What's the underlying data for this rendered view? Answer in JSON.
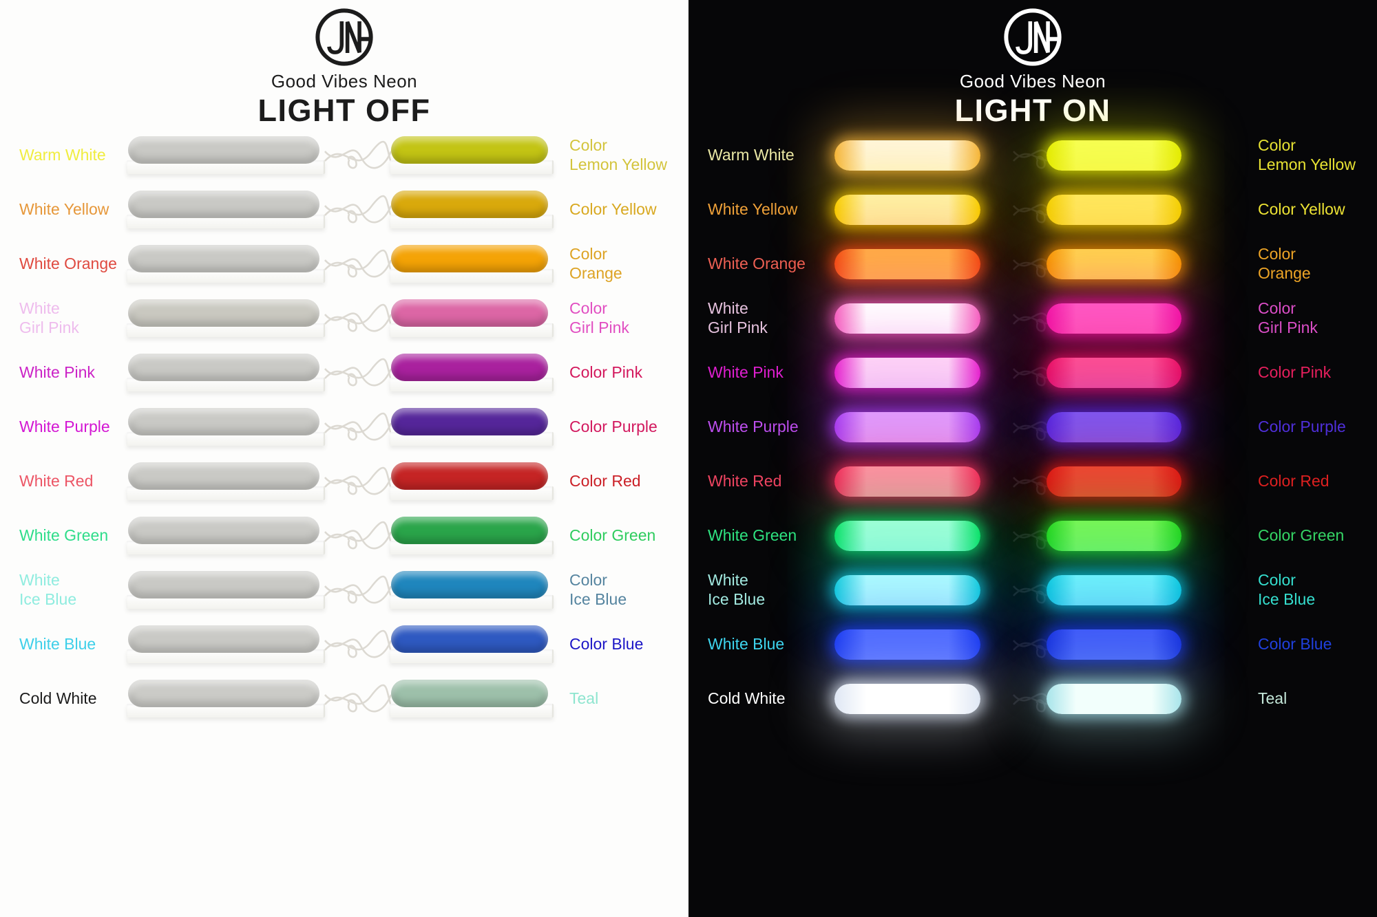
{
  "brand": {
    "name": "Good Vibes Neon",
    "monogram": "JN"
  },
  "panels": {
    "off": {
      "title": "LIGHT OFF",
      "background": "#fdfdfc",
      "text_color": "#1c1c1c"
    },
    "on": {
      "title": "LIGHT ON",
      "background": "#060608",
      "text_color": "#ffffff"
    }
  },
  "rows": [
    {
      "white_label": "Warm White",
      "color_label": "Color\nLemon Yellow",
      "off": {
        "white_label_color": "#f0ed40",
        "color_label_color": "#d3c43c",
        "white_tube": "#c9c9c5",
        "color_tube": "#c3c414"
      },
      "on": {
        "white_label_color": "#eae8a5",
        "color_label_color": "#e7e233",
        "white_tube": [
          "#f5b43a",
          "#fff6dc"
        ],
        "color_tube": [
          "#e3ec00",
          "#f6ff52"
        ]
      }
    },
    {
      "white_label": "White Yellow",
      "color_label": "Color Yellow",
      "off": {
        "white_label_color": "#e69739",
        "color_label_color": "#d8a81f",
        "white_tube": "#c9c9c5",
        "color_tube": "#d9a90c"
      },
      "on": {
        "white_label_color": "#efa139",
        "color_label_color": "#ede334",
        "white_tube": [
          "#f8cf00",
          "#fff3a6"
        ],
        "color_tube": [
          "#f3cf00",
          "#ffe95e"
        ]
      }
    },
    {
      "white_label": "White Orange",
      "color_label": "Color\nOrange",
      "off": {
        "white_label_color": "#df4a40",
        "color_label_color": "#dda324",
        "white_tube": "#c9c9c5",
        "color_tube": "#f4a306"
      },
      "on": {
        "white_label_color": "#ee6054",
        "color_label_color": "#eda426",
        "white_tube": [
          "#f24a12",
          "#ffab45"
        ],
        "color_tube": [
          "#f59300",
          "#ffd24e"
        ]
      }
    },
    {
      "white_label": "White\nGirl Pink",
      "color_label": "Color\nGirl Pink",
      "off": {
        "white_label_color": "#eebced",
        "color_label_color": "#e14ec1",
        "white_tube": "#c9c8c0",
        "color_tube": "#dc66a5"
      },
      "on": {
        "white_label_color": "#e6c2de",
        "color_label_color": "#dc4ec8",
        "white_tube": [
          "#f560be",
          "#ffffff"
        ],
        "color_tube": [
          "#f014a6",
          "#ff58c4"
        ]
      }
    },
    {
      "white_label": "White Pink",
      "color_label": "Color Pink",
      "off": {
        "white_label_color": "#cb22c6",
        "color_label_color": "#d3175c",
        "white_tube": "#c9c9c5",
        "color_tube": "#a9219e"
      },
      "on": {
        "white_label_color": "#df1fd0",
        "color_label_color": "#e61f5d",
        "white_tube": [
          "#e822cc",
          "#ffd4f6"
        ],
        "color_tube": [
          "#ea0e62",
          "#ff4e92"
        ]
      }
    },
    {
      "white_label": "White Purple",
      "color_label": "Color Purple",
      "off": {
        "white_label_color": "#d316d3",
        "color_label_color": "#d2185e",
        "white_tube": "#c9c9c5",
        "color_tube": "#55269a"
      },
      "on": {
        "white_label_color": "#bd4fee",
        "color_label_color": "#4f2fda",
        "white_tube": [
          "#a43cf2",
          "#e09cff"
        ],
        "color_tube": [
          "#5526e0",
          "#7e57f2"
        ]
      }
    },
    {
      "white_label": "White Red",
      "color_label": "Color Red",
      "off": {
        "white_label_color": "#ec5565",
        "color_label_color": "#cb2027",
        "white_tube": "#c9c9c5",
        "color_tube": "#c52424"
      },
      "on": {
        "white_label_color": "#ee4461",
        "color_label_color": "#dd2020",
        "white_tube": [
          "#f22858",
          "#ff8fa0"
        ],
        "color_tube": [
          "#de1414",
          "#ef4433"
        ]
      }
    },
    {
      "white_label": "White Green",
      "color_label": "Color Green",
      "off": {
        "white_label_color": "#2edd8a",
        "color_label_color": "#2ecc5e",
        "white_tube": "#c9c9c5",
        "color_tube": "#2aa54a"
      },
      "on": {
        "white_label_color": "#2fe381",
        "color_label_color": "#35d565",
        "white_tube": [
          "#0ce266",
          "#9effd6"
        ],
        "color_tube": [
          "#23d41d",
          "#77f556"
        ]
      }
    },
    {
      "white_label": "White\nIce Blue",
      "color_label": "Color\nIce Blue",
      "off": {
        "white_label_color": "#8fecdf",
        "color_label_color": "#55849f",
        "white_tube": "#c9c9c5",
        "color_tube": "#1f86bd"
      },
      "on": {
        "white_label_color": "#a2e9e0",
        "color_label_color": "#35dfcf",
        "white_tube": [
          "#14ccdd",
          "#aefcff"
        ],
        "color_tube": [
          "#0cc8de",
          "#6ef2fb"
        ]
      }
    },
    {
      "white_label": "White Blue",
      "color_label": "Color Blue",
      "off": {
        "white_label_color": "#3ecfe9",
        "color_label_color": "#1b15c6",
        "white_tube": "#c9c9c5",
        "color_tube": "#2e59c1"
      },
      "on": {
        "white_label_color": "#3ed5ee",
        "color_label_color": "#2040dd",
        "white_tube": [
          "#1a3af0",
          "#4e6aff"
        ],
        "color_tube": [
          "#1631dd",
          "#3f5af8"
        ]
      }
    },
    {
      "white_label": "Cold White",
      "color_label": "Teal",
      "off": {
        "white_label_color": "#1b1b1b",
        "color_label_color": "#8ee5cf",
        "white_tube": "#cbcbc7",
        "color_tube": "#9dc0aa"
      },
      "on": {
        "white_label_color": "#ffffff",
        "color_label_color": "#c4e7d9",
        "white_tube": [
          "#dfe7f4",
          "#ffffff"
        ],
        "color_tube": [
          "#a8e4ea",
          "#f2fffc"
        ]
      }
    }
  ]
}
